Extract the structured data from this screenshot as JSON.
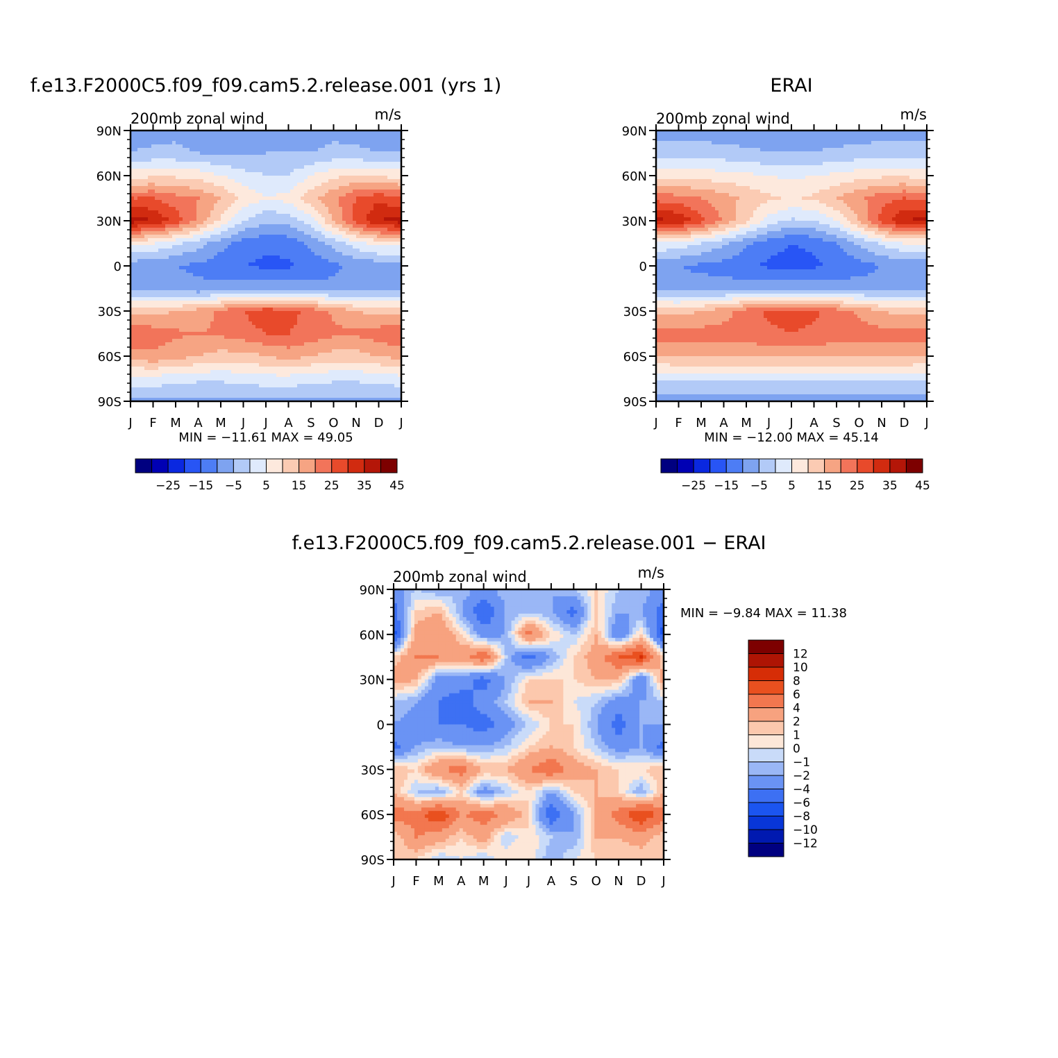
{
  "figure": {
    "panels": [
      {
        "title": "f.e13.F2000C5.f09_f09.cam5.2.release.001 (yrs 1)",
        "left_label": "200mb zonal wind",
        "right_label": "m/s",
        "minmax": "MIN = −11.61 MAX =  49.05"
      },
      {
        "title": "ERAI",
        "left_label": "200mb zonal wind",
        "right_label": "m/s",
        "minmax": "MIN = −12.00 MAX =  45.14"
      },
      {
        "title": "f.e13.F2000C5.f09_f09.cam5.2.release.001 − ERAI",
        "left_label": "200mb zonal wind",
        "right_label": "m/s",
        "minmax": "MIN =   −9.84 MAX =   11.38"
      }
    ],
    "months": [
      "J",
      "F",
      "M",
      "A",
      "M",
      "J",
      "J",
      "A",
      "S",
      "O",
      "N",
      "D",
      "J"
    ],
    "lat_labels": [
      "90N",
      "60N",
      "30N",
      "0",
      "30S",
      "60S",
      "90S"
    ]
  },
  "chart_data": [
    {
      "type": "heatmap",
      "title": "f.e13.F2000C5.f09_f09.cam5.2.release.001 (yrs 1)",
      "subtitle": "200mb zonal wind",
      "units": "m/s",
      "x_ticks": [
        "J",
        "F",
        "M",
        "A",
        "M",
        "J",
        "J",
        "A",
        "S",
        "O",
        "N",
        "D",
        "J"
      ],
      "y_ticks": [
        "90N",
        "60N",
        "30N",
        "0",
        "30S",
        "60S",
        "90S"
      ],
      "y_lat": [
        90,
        75,
        60,
        45,
        30,
        15,
        0,
        -15,
        -30,
        -45,
        -60,
        -75,
        -90
      ],
      "z": [
        [
          -2,
          -2,
          -1,
          -3,
          -5,
          -3,
          -2,
          -2,
          -2,
          -1,
          -2,
          -2,
          -2
        ],
        [
          0,
          1,
          1,
          0,
          -1,
          -1,
          0,
          0,
          0,
          1,
          1,
          0,
          0
        ],
        [
          13,
          14,
          14,
          13,
          10,
          7,
          5,
          5,
          10,
          14,
          15,
          14,
          13
        ],
        [
          30,
          30,
          27,
          25,
          20,
          14,
          10,
          12,
          18,
          24,
          30,
          34,
          30
        ],
        [
          43,
          40,
          33,
          24,
          14,
          5,
          1,
          2,
          8,
          20,
          32,
          40,
          43
        ],
        [
          12,
          10,
          6,
          2,
          -3,
          -7,
          -9,
          -8,
          -4,
          2,
          8,
          12,
          12
        ],
        [
          -3,
          -4,
          -5,
          -6,
          -8,
          -10,
          -11,
          -11,
          -8,
          -6,
          -4,
          -3,
          -3
        ],
        [
          -1,
          -2,
          -3,
          -4,
          -3,
          -2,
          -2,
          -2,
          -3,
          -4,
          -3,
          -2,
          -1
        ],
        [
          18,
          18,
          20,
          22,
          26,
          30,
          33,
          32,
          28,
          24,
          20,
          18,
          18
        ],
        [
          30,
          28,
          26,
          25,
          26,
          28,
          30,
          30,
          28,
          26,
          26,
          28,
          30
        ],
        [
          22,
          24,
          22,
          20,
          18,
          18,
          20,
          22,
          20,
          18,
          18,
          20,
          22
        ],
        [
          8,
          8,
          7,
          6,
          6,
          7,
          8,
          8,
          7,
          6,
          6,
          7,
          8
        ],
        [
          -1,
          -1,
          -1,
          -1,
          -1,
          -1,
          -1,
          -1,
          -1,
          -1,
          -1,
          -1,
          -1
        ]
      ],
      "min": -11.61,
      "max": 49.05,
      "levels": [
        -30,
        -25,
        -20,
        -15,
        -10,
        -5,
        0,
        5,
        10,
        15,
        20,
        25,
        30,
        35,
        40,
        45,
        50
      ],
      "colorbar_ticks": [
        "−25",
        "−15",
        "−5",
        "5",
        "15",
        "25",
        "35",
        "45"
      ]
    },
    {
      "type": "heatmap",
      "title": "ERAI",
      "subtitle": "200mb zonal wind",
      "units": "m/s",
      "x_ticks": [
        "J",
        "F",
        "M",
        "A",
        "M",
        "J",
        "J",
        "A",
        "S",
        "O",
        "N",
        "D",
        "J"
      ],
      "y_ticks": [
        "90N",
        "60N",
        "30N",
        "0",
        "30S",
        "60S",
        "90S"
      ],
      "y_lat": [
        90,
        75,
        60,
        45,
        30,
        15,
        0,
        -15,
        -30,
        -45,
        -60,
        -75,
        -90
      ],
      "z": [
        [
          -3,
          -3,
          -3,
          -3,
          -3,
          -2,
          -2,
          -2,
          -3,
          -3,
          -3,
          -3,
          -3
        ],
        [
          3,
          3,
          3,
          2,
          1,
          0,
          0,
          0,
          1,
          2,
          3,
          3,
          3
        ],
        [
          13,
          13,
          13,
          12,
          11,
          10,
          9,
          10,
          11,
          13,
          14,
          14,
          13
        ],
        [
          28,
          27,
          25,
          22,
          19,
          16,
          14,
          16,
          20,
          24,
          28,
          30,
          28
        ],
        [
          42,
          39,
          32,
          24,
          16,
          8,
          4,
          5,
          10,
          20,
          32,
          40,
          42
        ],
        [
          10,
          8,
          5,
          1,
          -4,
          -8,
          -10,
          -9,
          -5,
          1,
          6,
          10,
          10
        ],
        [
          -4,
          -5,
          -6,
          -7,
          -9,
          -11,
          -12,
          -11,
          -9,
          -7,
          -5,
          -4,
          -4
        ],
        [
          -2,
          -3,
          -3,
          -3,
          -2,
          -1,
          -1,
          -1,
          -2,
          -3,
          -3,
          -2,
          -2
        ],
        [
          18,
          18,
          20,
          23,
          27,
          31,
          32,
          31,
          27,
          24,
          20,
          18,
          18
        ],
        [
          28,
          27,
          27,
          27,
          28,
          29,
          30,
          29,
          28,
          27,
          27,
          28,
          28
        ],
        [
          20,
          21,
          21,
          21,
          21,
          21,
          21,
          21,
          21,
          21,
          21,
          21,
          20
        ],
        [
          6,
          6,
          6,
          6,
          6,
          6,
          6,
          6,
          6,
          6,
          6,
          6,
          6
        ],
        [
          -2,
          -2,
          -2,
          -2,
          -2,
          -2,
          -2,
          -2,
          -2,
          -2,
          -2,
          -2,
          -2
        ]
      ],
      "min": -12.0,
      "max": 45.14,
      "levels": [
        -30,
        -25,
        -20,
        -15,
        -10,
        -5,
        0,
        5,
        10,
        15,
        20,
        25,
        30,
        35,
        40,
        45,
        50
      ],
      "colorbar_ticks": [
        "−25",
        "−15",
        "−5",
        "5",
        "15",
        "25",
        "35",
        "45"
      ]
    },
    {
      "type": "heatmap",
      "title": "f.e13.F2000C5.f09_f09.cam5.2.release.001 − ERAI",
      "subtitle": "200mb zonal wind",
      "units": "m/s",
      "x_ticks": [
        "J",
        "F",
        "M",
        "A",
        "M",
        "J",
        "J",
        "A",
        "S",
        "O",
        "N",
        "D",
        "J"
      ],
      "y_ticks": [
        "90N",
        "60N",
        "30N",
        "0",
        "30S",
        "60S",
        "90S"
      ],
      "y_lat": [
        90,
        75,
        60,
        45,
        30,
        15,
        0,
        -15,
        -30,
        -45,
        -60,
        -75,
        -90
      ],
      "z": [
        [
          -3,
          -1,
          -2,
          -1,
          -3,
          -1,
          -1,
          -2,
          -1,
          1,
          -1,
          -1,
          -3
        ],
        [
          -5,
          1,
          2,
          -2,
          -6,
          -2,
          -1,
          -2,
          -5,
          1,
          -2,
          -2,
          -5
        ],
        [
          -7,
          3,
          4,
          1,
          -3,
          -2,
          5,
          1,
          -1,
          2,
          -4,
          1,
          -7
        ],
        [
          1,
          4,
          4,
          3,
          6,
          -1,
          -5,
          -2,
          1,
          3,
          6,
          8,
          1
        ],
        [
          3,
          2,
          -3,
          -3,
          -5,
          -2,
          1,
          1,
          1,
          2,
          2,
          -4,
          3
        ],
        [
          -1,
          -2,
          -4,
          -5,
          -3,
          -1,
          2,
          2,
          0,
          -1,
          -3,
          -2,
          -1
        ],
        [
          -2,
          -3,
          -4,
          -4,
          -5,
          -3,
          -1,
          1,
          1,
          -2,
          -5,
          -2,
          -2
        ],
        [
          -5,
          -2,
          -1,
          -2,
          -2,
          -1,
          1,
          2,
          1,
          -1,
          -3,
          -2,
          -5
        ],
        [
          2,
          1,
          4,
          5,
          2,
          2,
          4,
          6,
          3,
          2,
          1,
          1,
          2
        ],
        [
          2,
          -1,
          -2,
          1,
          -3,
          -1,
          1,
          -2,
          1,
          2,
          1,
          -2,
          2
        ],
        [
          5,
          5,
          8,
          4,
          5,
          4,
          1,
          -6,
          -2,
          2,
          5,
          8,
          5
        ],
        [
          1,
          4,
          3,
          1,
          3,
          -1,
          1,
          -1,
          -2,
          2,
          2,
          3,
          1
        ],
        [
          1,
          1,
          -1,
          0,
          -1,
          1,
          1,
          -2,
          0,
          1,
          1,
          1,
          1
        ]
      ],
      "min": -9.84,
      "max": 11.38,
      "levels": [
        -14,
        -12,
        -10,
        -8,
        -6,
        -4,
        -2,
        -1,
        0,
        1,
        2,
        4,
        6,
        8,
        10,
        12,
        14
      ],
      "colorbar_ticks": [
        "12",
        "10",
        "8",
        "6",
        "4",
        "2",
        "1",
        "0",
        "−1",
        "−2",
        "−4",
        "−6",
        "−8",
        "−10",
        "−12"
      ]
    }
  ],
  "colors": {
    "full_field": [
      "#000080",
      "#0000b4",
      "#0a28e0",
      "#2855f5",
      "#4d7df5",
      "#7ea3f0",
      "#b2caf7",
      "#dfeafc",
      "#fde9dd",
      "#fbcbb3",
      "#f6a483",
      "#f2745a",
      "#e84a2b",
      "#d12b10",
      "#b41608",
      "#7d0000"
    ],
    "difference": [
      "#000080",
      "#0019b0",
      "#0836d8",
      "#1b55f0",
      "#3d70f3",
      "#6a93f4",
      "#9ab7f6",
      "#c9dbf9",
      "#fde7d8",
      "#fcc8ad",
      "#f7a27f",
      "#f2774f",
      "#e9501f",
      "#d62d06",
      "#ae1404",
      "#7d0000"
    ]
  }
}
